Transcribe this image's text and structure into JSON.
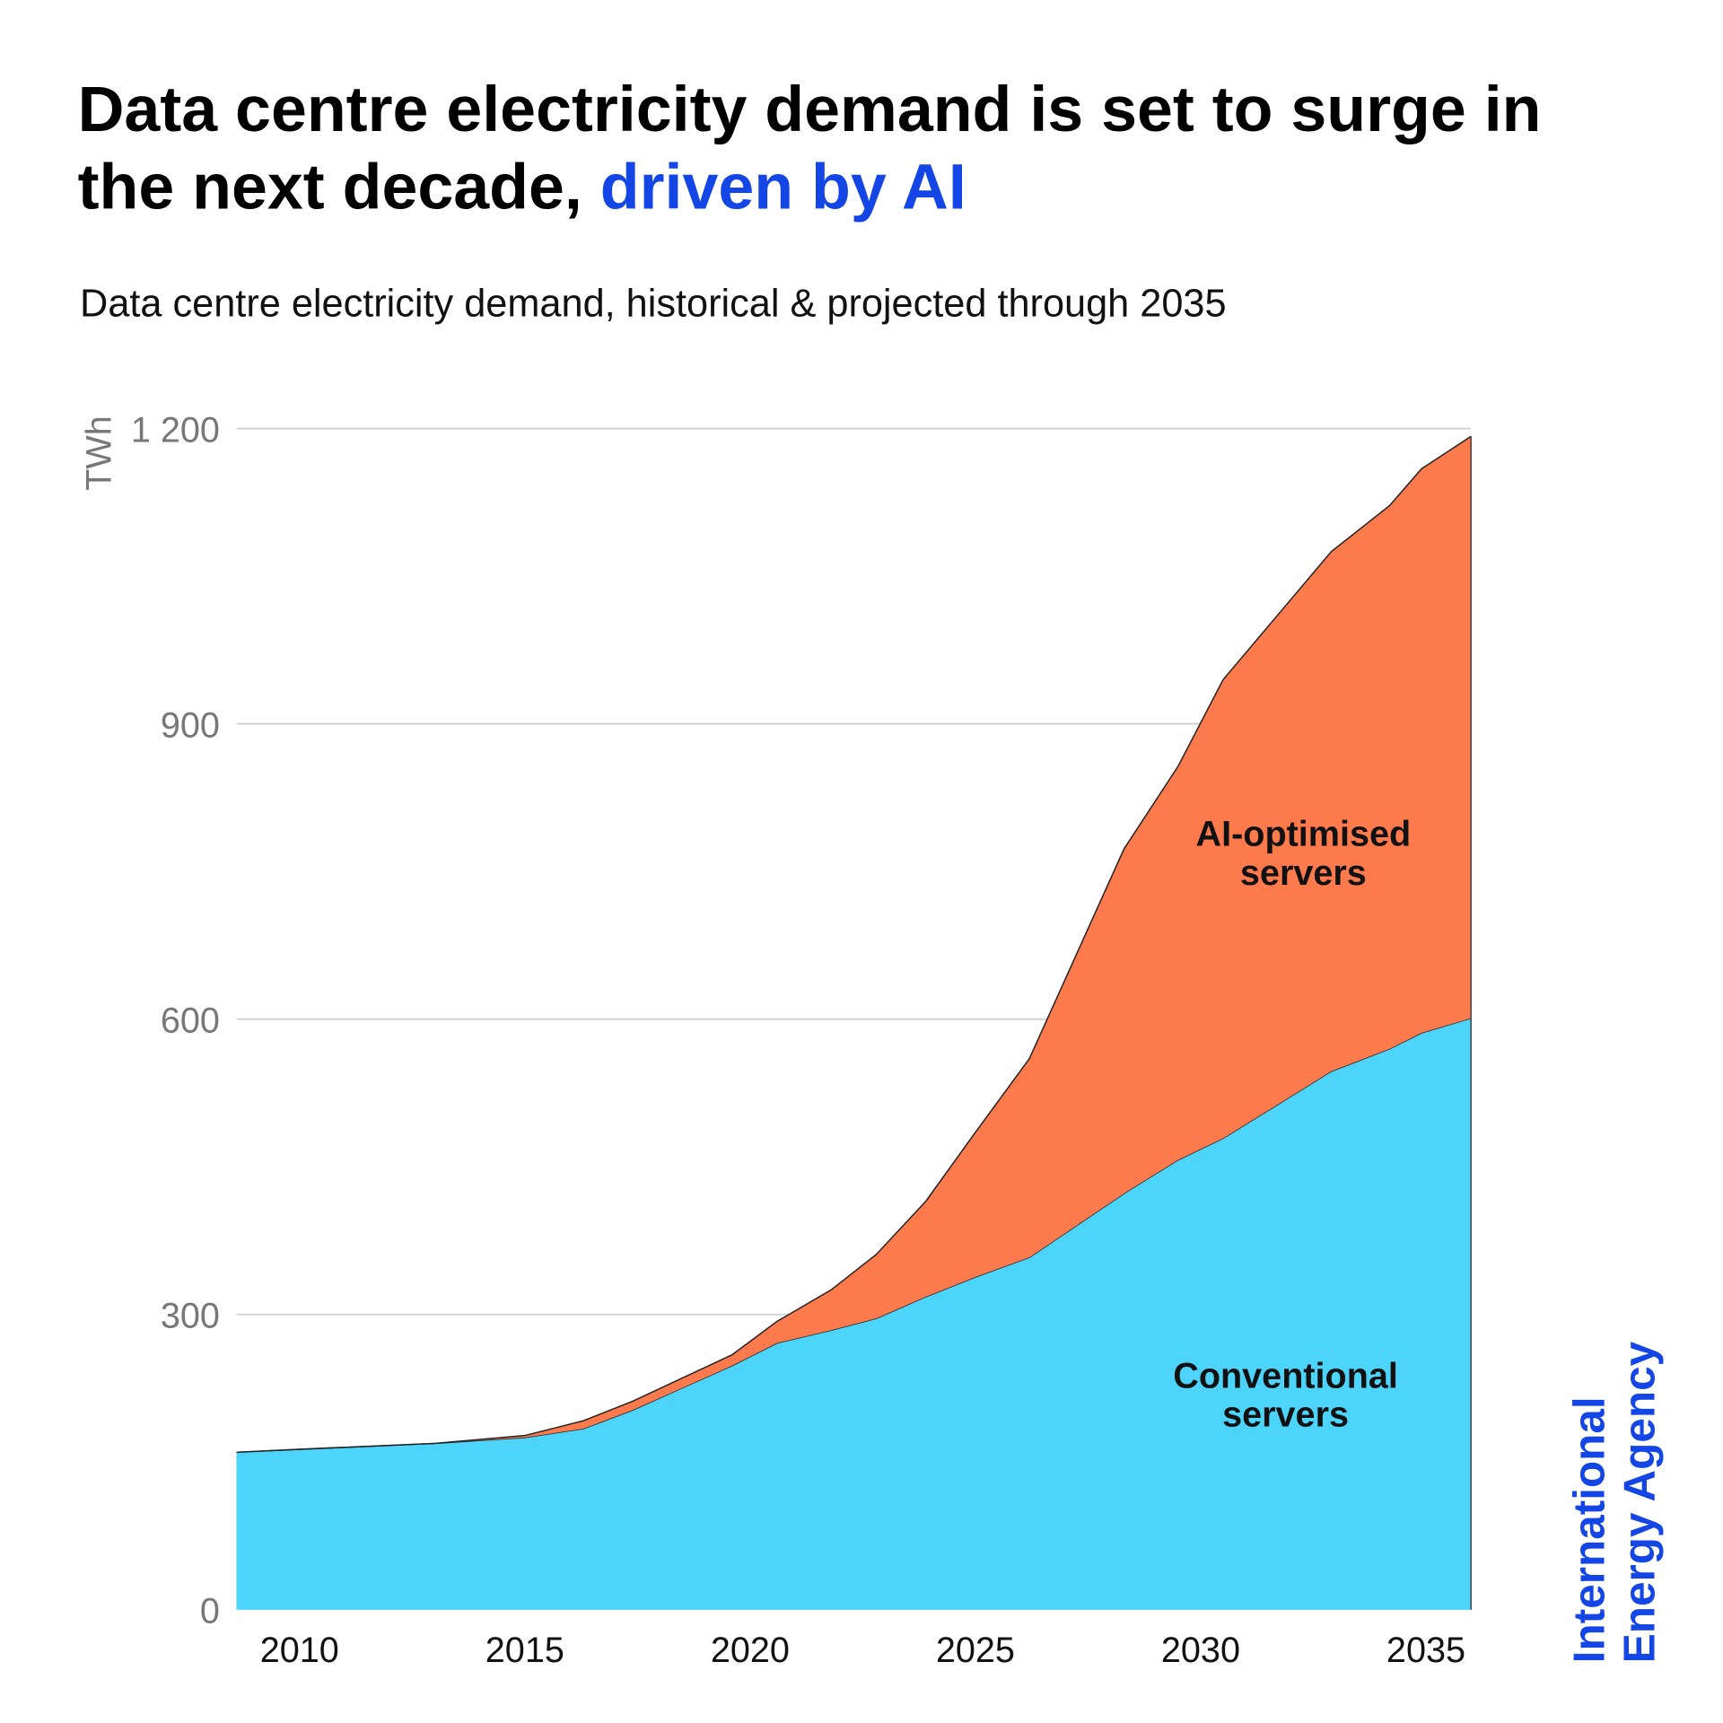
{
  "title": {
    "part1": "Data centre electricity demand is set to surge in",
    "part2": "the next decade,",
    "highlight": "driven by AI",
    "highlight_color": "#1446e6"
  },
  "subtitle": "Data centre electricity demand, historical & projected through 2035",
  "logo": {
    "line1": "International",
    "line2": "Energy Agency",
    "color": "#1446e6"
  },
  "chart_data": {
    "type": "area",
    "stacked": true,
    "ylabel": "TWh",
    "xlabel": "",
    "xlim": [
      2008.6,
      2036
    ],
    "ylim": [
      0,
      1200
    ],
    "yticks": [
      0,
      300,
      600,
      900,
      1200
    ],
    "ytick_labels": [
      "0",
      "300",
      "600",
      "900",
      "1 200"
    ],
    "xticks": [
      2010,
      2015,
      2020,
      2025,
      2030,
      2035
    ],
    "xtick_labels": [
      "2010",
      "2015",
      "2020",
      "2025",
      "2030",
      "2035"
    ],
    "grid": "horizontal",
    "x": [
      2008.6,
      2010,
      2013,
      2015,
      2016.3,
      2017.4,
      2019.6,
      2020.6,
      2021.8,
      2022.8,
      2023.9,
      2025,
      2026.2,
      2028.3,
      2029.5,
      2030.5,
      2031.7,
      2032.9,
      2034.2,
      2034.9,
      2036
    ],
    "series": [
      {
        "name": "Conventional servers",
        "color": "#4dd4fb",
        "values": [
          160,
          163,
          169,
          175,
          184,
          203,
          248,
          271,
          284,
          296,
          318,
          338,
          358,
          423,
          457,
          479,
          513,
          547,
          570,
          586,
          601
        ]
      },
      {
        "name": "AI-optimised servers",
        "color": "#fc7a4c",
        "values": [
          0,
          0,
          0,
          2,
          8,
          9,
          11,
          22,
          41,
          65,
          97,
          147,
          202,
          350,
          400,
          466,
          497,
          528,
          552,
          573,
          591
        ]
      }
    ],
    "annotations": {
      "conventional": [
        "Conventional",
        "servers"
      ],
      "ai": [
        "AI-optimised",
        "servers"
      ]
    }
  }
}
